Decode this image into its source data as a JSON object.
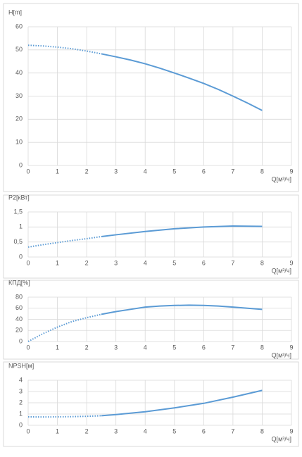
{
  "chart_data": [
    {
      "type": "line",
      "y_label": "H[m]",
      "x_label": "Q[м³/ч]",
      "xlim": [
        0,
        9
      ],
      "xticks": [
        0,
        1,
        2,
        3,
        4,
        5,
        6,
        7,
        8,
        9
      ],
      "ylim": [
        0,
        60
      ],
      "yticks": [
        0,
        10,
        20,
        30,
        40,
        50,
        60
      ],
      "grid": true,
      "series": [
        {
          "color": "#5b9bd5",
          "line_style": "dotted",
          "x": [
            0,
            0.5,
            1,
            1.5,
            2,
            2.5
          ],
          "values": [
            52,
            51.7,
            51.2,
            50.5,
            49.5,
            48.3
          ]
        },
        {
          "color": "#5b9bd5",
          "line_style": "solid",
          "x": [
            2.5,
            3,
            3.5,
            4,
            4.5,
            5,
            5.5,
            6,
            6.5,
            7,
            7.5,
            8
          ],
          "values": [
            48.3,
            47,
            45.6,
            44,
            42.1,
            40,
            37.8,
            35.5,
            32.9,
            30,
            27,
            23.8
          ]
        }
      ]
    },
    {
      "type": "line",
      "y_label": "P2[кВт]",
      "x_label": "Q[м³/ч]",
      "xlim": [
        0,
        9
      ],
      "xticks": [
        0,
        1,
        2,
        3,
        4,
        5,
        6,
        7,
        8,
        9
      ],
      "ylim": [
        0,
        1.5
      ],
      "yticks": [
        0,
        {
          "value": 0.5,
          "label": "0,5"
        },
        1,
        {
          "value": 1.5,
          "label": "1,5"
        }
      ],
      "grid": true,
      "series": [
        {
          "color": "#5b9bd5",
          "line_style": "dotted",
          "x": [
            0,
            0.5,
            1,
            1.5,
            2,
            2.5
          ],
          "values": [
            0.33,
            0.41,
            0.48,
            0.55,
            0.61,
            0.68
          ]
        },
        {
          "color": "#5b9bd5",
          "line_style": "solid",
          "x": [
            2.5,
            3,
            4,
            5,
            6,
            7,
            8
          ],
          "values": [
            0.68,
            0.74,
            0.85,
            0.94,
            1.0,
            1.03,
            1.02
          ]
        }
      ]
    },
    {
      "type": "line",
      "y_label": "КПД[%]",
      "x_label": "Q[м³/ч]",
      "xlim": [
        0,
        9
      ],
      "xticks": [
        0,
        1,
        2,
        3,
        4,
        5,
        6,
        7,
        8,
        9
      ],
      "ylim": [
        0,
        80
      ],
      "yticks": [
        0,
        20,
        40,
        60,
        80
      ],
      "grid": true,
      "series": [
        {
          "color": "#5b9bd5",
          "line_style": "dotted",
          "x": [
            0,
            0.5,
            1,
            1.5,
            2,
            2.5
          ],
          "values": [
            0,
            14,
            26,
            36,
            43,
            49
          ]
        },
        {
          "color": "#5b9bd5",
          "line_style": "solid",
          "x": [
            2.5,
            3,
            3.5,
            4,
            4.5,
            5,
            5.5,
            6,
            6.5,
            7,
            7.5,
            8
          ],
          "values": [
            49,
            54,
            58,
            62,
            64,
            65,
            65.5,
            65,
            64,
            62,
            60,
            58
          ]
        }
      ]
    },
    {
      "type": "line",
      "y_label": "NPSH[м]",
      "x_label": "Q[м³/ч]",
      "xlim": [
        0,
        9
      ],
      "xticks": [
        0,
        1,
        2,
        3,
        4,
        5,
        6,
        7,
        8,
        9
      ],
      "ylim": [
        0,
        4
      ],
      "yticks": [
        0,
        1,
        2,
        3,
        4
      ],
      "grid": true,
      "series": [
        {
          "color": "#5b9bd5",
          "line_style": "dotted",
          "x": [
            0,
            0.5,
            1,
            1.5,
            2,
            2.5
          ],
          "values": [
            0.75,
            0.74,
            0.75,
            0.77,
            0.8,
            0.85
          ]
        },
        {
          "color": "#5b9bd5",
          "line_style": "solid",
          "x": [
            2.5,
            3,
            4,
            5,
            6,
            7,
            8
          ],
          "values": [
            0.85,
            0.95,
            1.2,
            1.55,
            1.95,
            2.5,
            3.1
          ]
        }
      ]
    }
  ]
}
